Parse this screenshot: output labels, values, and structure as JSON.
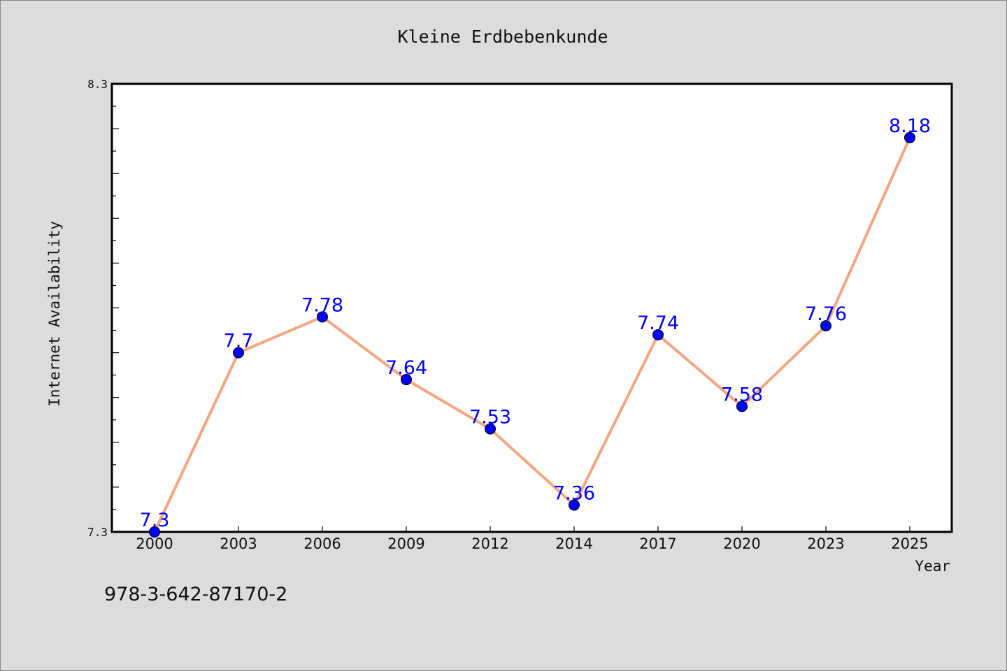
{
  "chart_data": {
    "type": "line",
    "title": "Kleine Erdbebenkunde",
    "xlabel": "Year",
    "ylabel": "Internet Availability",
    "categories": [
      "2000",
      "2003",
      "2006",
      "2009",
      "2012",
      "2014",
      "2017",
      "2020",
      "2023",
      "2025"
    ],
    "series": [
      {
        "values": [
          7.3,
          7.7,
          7.78,
          7.64,
          7.53,
          7.36,
          7.74,
          7.58,
          7.76,
          8.18
        ],
        "labels": [
          "7.3",
          "7.7",
          "7.78",
          "7.64",
          "7.53",
          "7.36",
          "7.74",
          "7.58",
          "7.76",
          "8.18"
        ],
        "line_color": "#f4a582",
        "marker_color": "#0000ff",
        "label_color": "#0000ff"
      }
    ],
    "ylim": [
      7.3,
      8.3
    ],
    "y_tick_labels": [
      "7.3",
      "8.3"
    ],
    "grid": false,
    "legend": "none"
  },
  "footer": {
    "code": "978-3-642-87170-2"
  },
  "colors": {
    "background": "#dcdcdc",
    "plot_area": "#ffffff",
    "axis": "#000000"
  }
}
